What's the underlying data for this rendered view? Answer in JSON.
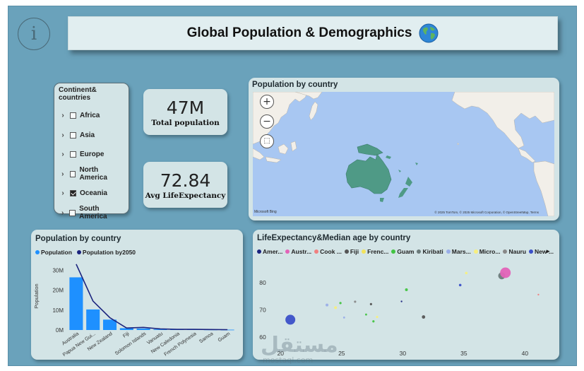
{
  "title": "Global Population & Demographics",
  "colors": {
    "canvas": "#6aa2bb",
    "panel": "#d3e4e6",
    "bar": "#1e90ff",
    "line": "#1a237e",
    "ocean": "#a8c7f2",
    "land": "#f2efe9",
    "highlight": "#4f9a86"
  },
  "slicer": {
    "header": "Continent& countries",
    "items": [
      {
        "label": "Africa",
        "checked": false
      },
      {
        "label": "Asia",
        "checked": false
      },
      {
        "label": "Europe",
        "checked": false
      },
      {
        "label": "North America",
        "checked": false
      },
      {
        "label": "Oceania",
        "checked": true
      },
      {
        "label": "South America",
        "checked": false
      }
    ]
  },
  "kpis": {
    "total_population": {
      "value": "47M",
      "label": "Total population"
    },
    "avg_life": {
      "value": "72.84",
      "label": "Avg LifeExpectancy"
    }
  },
  "map": {
    "title": "Population by country",
    "logo": "Microsoft Bing",
    "credit": "© 2025 TomTom, © 2025 Microsoft Corporation, © OpenStreetMap, Terms",
    "zoom_in": "+",
    "zoom_out": "−",
    "select": "⬚"
  },
  "bar_chart": {
    "title": "Population by country",
    "legend": [
      "Population",
      "Population by2050"
    ],
    "ylabel": "Population",
    "yticks": [
      "0M",
      "10M",
      "20M",
      "30M"
    ]
  },
  "scatter": {
    "title": "LifeExpectancy&Median age by country",
    "legend": [
      {
        "label": "Amer...",
        "color": "#1a237e"
      },
      {
        "label": "Austr...",
        "color": "#e363b8"
      },
      {
        "label": "Cook ...",
        "color": "#f08080"
      },
      {
        "label": "Fiji",
        "color": "#555555"
      },
      {
        "label": "Frenc...",
        "color": "#f2e35b"
      },
      {
        "label": "Guam",
        "color": "#42c442"
      },
      {
        "label": "Kiribati",
        "color": "#6b7b7b"
      },
      {
        "label": "Mars...",
        "color": "#9aaee8"
      },
      {
        "label": "Micro...",
        "color": "#f7ef80"
      },
      {
        "label": "Nauru",
        "color": "#888888"
      },
      {
        "label": "New ...",
        "color": "#3b50c8"
      }
    ],
    "more": "▸",
    "xticks": [
      "20",
      "25",
      "30",
      "35",
      "40"
    ],
    "yticks": [
      "60",
      "70",
      "80"
    ]
  },
  "chart_data": [
    {
      "type": "bar",
      "title": "Population by country",
      "categories": [
        "Australia",
        "Papua New Gui...",
        "New Zealand",
        "Fiji",
        "Solomon Islands",
        "Vanuatu",
        "New Caledonia",
        "French Polynesia",
        "Samoa",
        "Guam"
      ],
      "series": [
        {
          "name": "Population",
          "values": [
            26.4,
            10.3,
            5.2,
            0.93,
            0.74,
            0.33,
            0.29,
            0.31,
            0.22,
            0.17
          ]
        },
        {
          "name": "Population by2050",
          "values": [
            33,
            14.5,
            6.2,
            1.0,
            1.3,
            0.55,
            0.33,
            0.32,
            0.25,
            0.18
          ]
        }
      ],
      "ylabel": "Population",
      "ylim": [
        0,
        34
      ]
    },
    {
      "type": "scatter",
      "title": "LifeExpectancy&Median age by country",
      "xlim": [
        19,
        42
      ],
      "ylim": [
        59,
        88
      ],
      "points": [
        {
          "x": 20.8,
          "y": 66.4,
          "size": 7,
          "color": "#3b50c8"
        },
        {
          "x": 23.8,
          "y": 71.8,
          "size": 2,
          "color": "#9aaee8"
        },
        {
          "x": 24.5,
          "y": 70.8,
          "size": 2,
          "color": "#f7ef80"
        },
        {
          "x": 24.9,
          "y": 72.5,
          "size": 1.6,
          "color": "#42c442"
        },
        {
          "x": 25.2,
          "y": 67.2,
          "size": 1.4,
          "color": "#9aaee8"
        },
        {
          "x": 26.1,
          "y": 73.0,
          "size": 1.6,
          "color": "#888888"
        },
        {
          "x": 27.0,
          "y": 68.3,
          "size": 1.4,
          "color": "#42c442"
        },
        {
          "x": 27.4,
          "y": 72.1,
          "size": 1.6,
          "color": "#555555"
        },
        {
          "x": 27.6,
          "y": 65.8,
          "size": 1.6,
          "color": "#42c442"
        },
        {
          "x": 27.9,
          "y": 67.4,
          "size": 1.6,
          "color": "#f7ef80"
        },
        {
          "x": 29.9,
          "y": 73.1,
          "size": 1.2,
          "color": "#1a237e"
        },
        {
          "x": 30.3,
          "y": 77.4,
          "size": 2,
          "color": "#42c442"
        },
        {
          "x": 31.7,
          "y": 67.4,
          "size": 2.4,
          "color": "#555555"
        },
        {
          "x": 34.7,
          "y": 79.1,
          "size": 1.8,
          "color": "#3b50c8"
        },
        {
          "x": 35.2,
          "y": 83.5,
          "size": 1.8,
          "color": "#f7ef80"
        },
        {
          "x": 38.1,
          "y": 82.5,
          "size": 5,
          "color": "#6b7b7b"
        },
        {
          "x": 38.4,
          "y": 83.6,
          "size": 7.5,
          "color": "#e363b8"
        },
        {
          "x": 41.1,
          "y": 75.6,
          "size": 1.2,
          "color": "#f08080"
        }
      ]
    }
  ]
}
